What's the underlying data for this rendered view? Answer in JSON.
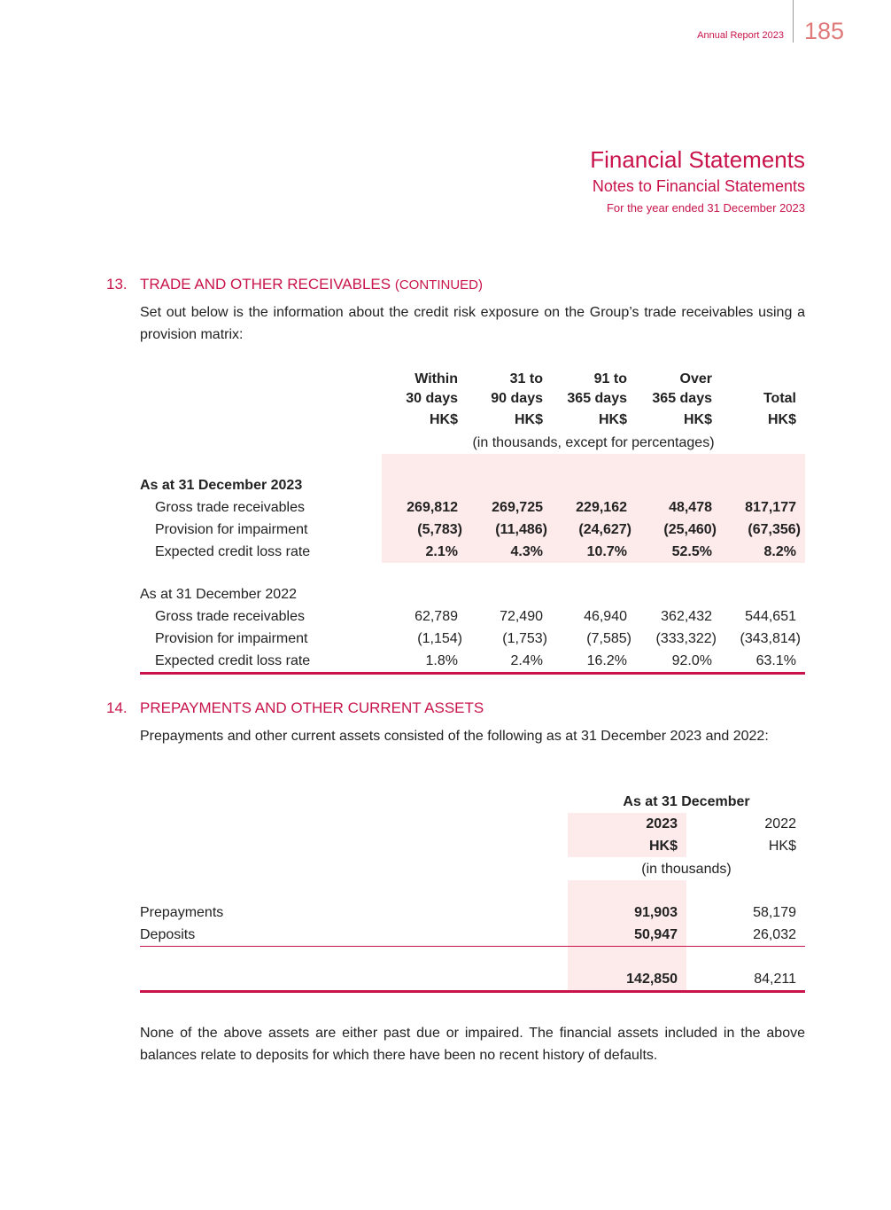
{
  "header": {
    "report": "Annual Report 2023",
    "page": "185"
  },
  "title": {
    "main": "Financial Statements",
    "sub": "Notes to Financial Statements",
    "period": "For the year ended 31 December 2023"
  },
  "section13": {
    "number": "13.",
    "heading": "TRADE AND OTHER RECEIVABLES",
    "heading_note": "(CONTINUED)",
    "intro": "Set out below is the information about the credit risk exposure on the Group’s trade receivables using a provision matrix:",
    "table": {
      "columns": [
        {
          "lines": [
            "Within",
            "30 days"
          ],
          "unit": "HK$"
        },
        {
          "lines": [
            "31 to",
            "90 days"
          ],
          "unit": "HK$"
        },
        {
          "lines": [
            "91 to",
            "365 days"
          ],
          "unit": "HK$"
        },
        {
          "lines": [
            "Over",
            "365 days"
          ],
          "unit": "HK$"
        },
        {
          "lines": [
            "Total"
          ],
          "unit": "HK$"
        }
      ],
      "unit_note": "(in thousands, except for percentages)",
      "groups": [
        {
          "label": "As at 31 December 2023",
          "rows": [
            {
              "label": "Gross trade receivables",
              "cells": [
                "269,812",
                "269,725",
                "229,162",
                "48,478",
                "817,177"
              ]
            },
            {
              "label": "Provision for impairment",
              "cells": [
                "(5,783)",
                "(11,486)",
                "(24,627)",
                "(25,460)",
                "(67,356)"
              ]
            },
            {
              "label": "Expected credit loss rate",
              "cells": [
                "2.1%",
                "4.3%",
                "10.7%",
                "52.5%",
                "8.2%"
              ]
            }
          ]
        },
        {
          "label": "As at 31 December 2022",
          "rows": [
            {
              "label": "Gross trade receivables",
              "cells": [
                "62,789",
                "72,490",
                "46,940",
                "362,432",
                "544,651"
              ]
            },
            {
              "label": "Provision for impairment",
              "cells": [
                "(1,154)",
                "(1,753)",
                "(7,585)",
                "(333,322)",
                "(343,814)"
              ]
            },
            {
              "label": "Expected credit loss rate",
              "cells": [
                "1.8%",
                "2.4%",
                "16.2%",
                "92.0%",
                "63.1%"
              ]
            }
          ]
        }
      ]
    }
  },
  "section14": {
    "number": "14.",
    "heading": "PREPAYMENTS AND OTHER CURRENT ASSETS",
    "intro": "Prepayments and other current assets consisted of the following as at 31 December 2023 and 2022:",
    "table": {
      "header": "As at 31 December",
      "columns": [
        {
          "year": "2023",
          "unit": "HK$"
        },
        {
          "year": "2022",
          "unit": "HK$"
        }
      ],
      "unit_note": "(in thousands)",
      "rows": [
        {
          "label": "Prepayments",
          "cells": [
            "91,903",
            "58,179"
          ]
        },
        {
          "label": "Deposits",
          "cells": [
            "50,947",
            "26,032"
          ]
        }
      ],
      "total": {
        "cells": [
          "142,850",
          "84,211"
        ]
      }
    },
    "footnote": "None of the above assets are either past due or impaired. The financial assets included in the above balances relate to deposits for which there have been no recent history of defaults."
  }
}
